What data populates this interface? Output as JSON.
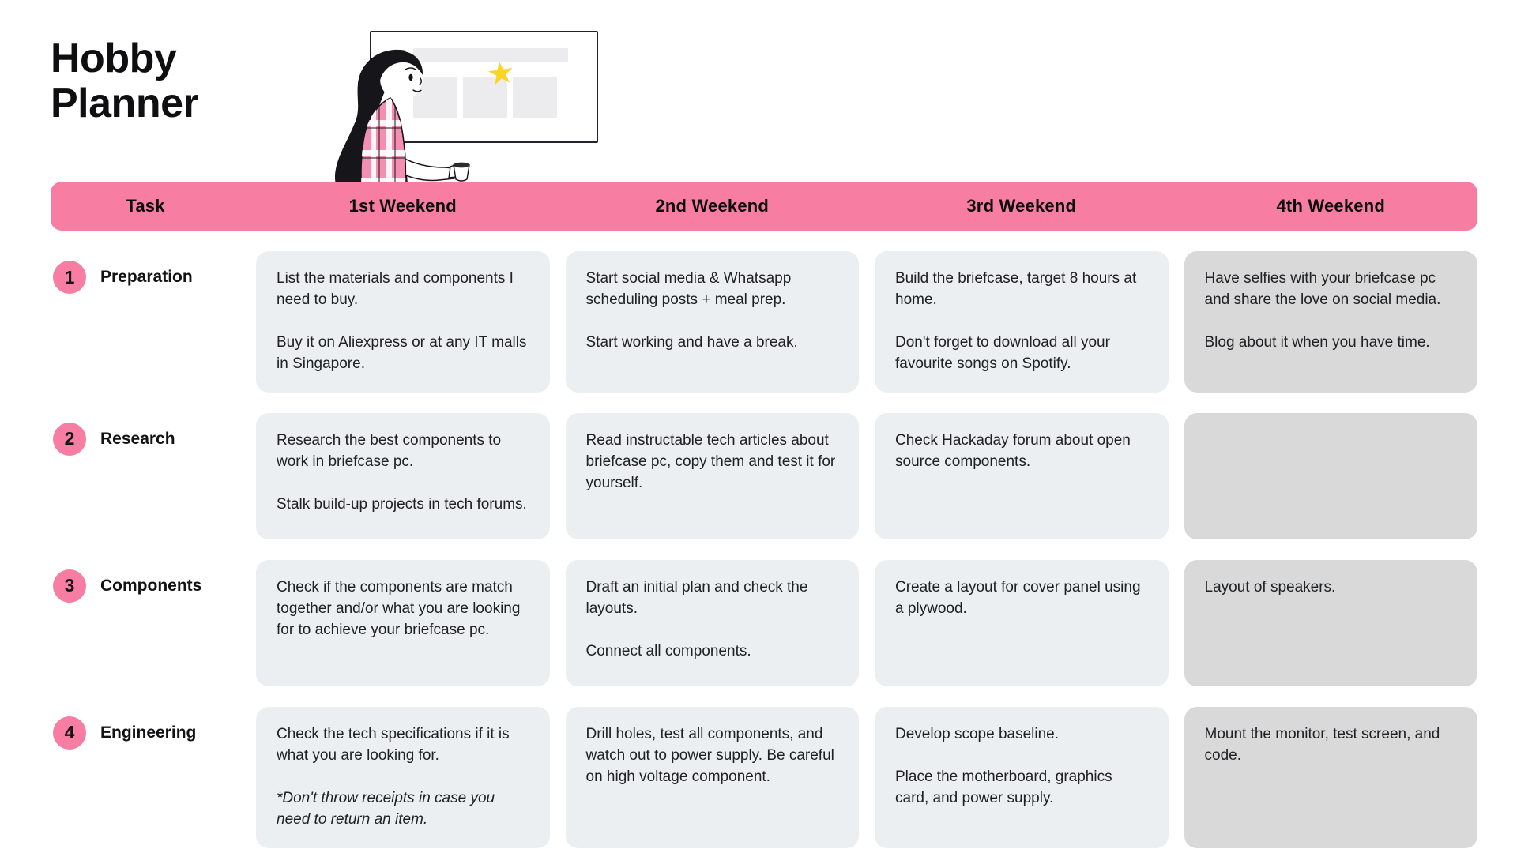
{
  "title": {
    "line1": "Hobby",
    "line2": "Planner"
  },
  "header": {
    "task_label": "Task",
    "weekend_labels": [
      "1st Weekend",
      "2nd Weekend",
      "3rd Weekend",
      "4th Weekend"
    ]
  },
  "illustration": {
    "star_icon": "★"
  },
  "colors": {
    "pink": "#F87DA3",
    "cell_light": "#ECEFF1",
    "cell_dark": "#D9D9D9",
    "star_yellow": "#FCD425"
  },
  "rows": [
    {
      "number": "1",
      "label": "Preparation",
      "cells": [
        {
          "variant": "light",
          "paragraphs": [
            {
              "text": "List the materials and components I need to buy.",
              "italic": false
            },
            {
              "text": "Buy it on Aliexpress or at any IT malls in Singapore.",
              "italic": false
            }
          ]
        },
        {
          "variant": "light",
          "paragraphs": [
            {
              "text": "Start social media & Whatsapp scheduling posts + meal prep.",
              "italic": false
            },
            {
              "text": "Start working and have a break.",
              "italic": false
            }
          ]
        },
        {
          "variant": "light",
          "paragraphs": [
            {
              "text": "Build the briefcase, target 8 hours at home.",
              "italic": false
            },
            {
              "text": "Don't forget to download all your favourite songs on Spotify.",
              "italic": false
            }
          ]
        },
        {
          "variant": "dark",
          "paragraphs": [
            {
              "text": "Have selfies with your briefcase pc and share the love on social media.",
              "italic": false
            },
            {
              "text": "Blog about it when you have time.",
              "italic": false
            }
          ]
        }
      ]
    },
    {
      "number": "2",
      "label": "Research",
      "cells": [
        {
          "variant": "light",
          "paragraphs": [
            {
              "text": "Research the best components to work in briefcase pc.",
              "italic": false
            },
            {
              "text": "Stalk build-up projects in tech forums.",
              "italic": false
            }
          ]
        },
        {
          "variant": "light",
          "paragraphs": [
            {
              "text": "Read instructable tech articles about briefcase pc, copy them and test it for yourself.",
              "italic": false
            }
          ]
        },
        {
          "variant": "light",
          "paragraphs": [
            {
              "text": "Check Hackaday forum about open source components.",
              "italic": false
            }
          ]
        },
        {
          "variant": "dark",
          "paragraphs": []
        }
      ]
    },
    {
      "number": "3",
      "label": "Components",
      "cells": [
        {
          "variant": "light",
          "paragraphs": [
            {
              "text": "Check if the components are match together and/or what you are looking for to achieve your briefcase pc.",
              "italic": false
            }
          ]
        },
        {
          "variant": "light",
          "paragraphs": [
            {
              "text": "Draft an initial plan and check the layouts.",
              "italic": false
            },
            {
              "text": "Connect all components.",
              "italic": false
            }
          ]
        },
        {
          "variant": "light",
          "paragraphs": [
            {
              "text": "Create a layout for cover panel using a plywood.",
              "italic": false
            }
          ]
        },
        {
          "variant": "dark",
          "paragraphs": [
            {
              "text": "Layout of speakers.",
              "italic": false
            }
          ]
        }
      ]
    },
    {
      "number": "4",
      "label": "Engineering",
      "cells": [
        {
          "variant": "light",
          "paragraphs": [
            {
              "text": "Check the tech specifications if it is what you are looking for.",
              "italic": false
            },
            {
              "text": "*Don't throw receipts in case you need to return an item.",
              "italic": true
            }
          ]
        },
        {
          "variant": "light",
          "paragraphs": [
            {
              "text": "Drill holes, test all components, and watch out to power supply. Be careful on high voltage component.",
              "italic": false
            }
          ]
        },
        {
          "variant": "light",
          "paragraphs": [
            {
              "text": "Develop scope baseline.",
              "italic": false
            },
            {
              "text": "Place the motherboard, graphics card, and power supply.",
              "italic": false
            }
          ]
        },
        {
          "variant": "dark",
          "paragraphs": [
            {
              "text": "Mount the monitor, test screen, and code.",
              "italic": false
            }
          ]
        }
      ]
    }
  ]
}
